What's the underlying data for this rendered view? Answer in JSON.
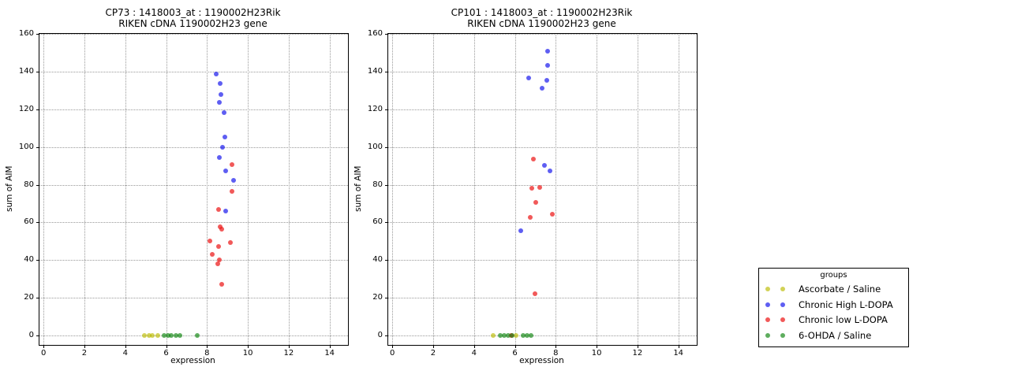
{
  "figure": {
    "background": "#ffffff",
    "grid_color": "#999999",
    "legend": {
      "title": "groups",
      "markers_per_entry": 2
    },
    "groups": [
      {
        "name": "Ascorbate / Saline",
        "color": "rgba(187,187,0,0.66)"
      },
      {
        "name": "Chronic High L-DOPA",
        "color": "rgba(10,10,235,0.66)"
      },
      {
        "name": "Chronic low L-DOPA",
        "color": "rgba(235,25,25,0.72)"
      },
      {
        "name": "6-OHDA / Saline",
        "color": "rgba(10,130,10,0.66)"
      }
    ]
  },
  "chart_data": [
    {
      "type": "scatter",
      "title_line1": "CP73 : 1418003_at : 1190002H23Rik",
      "title_line2": "RIKEN cDNA 1190002H23 gene",
      "xlabel": "expression",
      "ylabel": "sum of AIM",
      "xlim": [
        -0.2,
        14.9
      ],
      "ylim": [
        -5,
        160
      ],
      "xticks": [
        0,
        2,
        4,
        6,
        8,
        10,
        12,
        14
      ],
      "yticks": [
        0,
        20,
        40,
        60,
        80,
        100,
        120,
        140,
        160
      ],
      "grid": true,
      "series": [
        {
          "group": "Ascorbate / Saline",
          "points": [
            [
              4.95,
              0
            ],
            [
              5.16,
              0
            ],
            [
              5.34,
              0
            ],
            [
              5.59,
              0
            ]
          ]
        },
        {
          "group": "Chronic High L-DOPA",
          "points": [
            [
              8.46,
              138.5
            ],
            [
              8.66,
              133.6
            ],
            [
              8.7,
              127.8
            ],
            [
              8.6,
              123.6
            ],
            [
              8.83,
              118.3
            ],
            [
              8.89,
              105.3
            ],
            [
              8.75,
              99.9
            ],
            [
              8.61,
              94.5
            ],
            [
              8.9,
              87.3
            ],
            [
              9.3,
              82.2
            ],
            [
              8.9,
              66.2
            ]
          ]
        },
        {
          "group": "Chronic low L-DOPA",
          "points": [
            [
              9.21,
              90.8
            ],
            [
              9.24,
              76.6
            ],
            [
              8.57,
              66.9
            ],
            [
              8.64,
              57.8
            ],
            [
              8.71,
              56.6
            ],
            [
              8.16,
              50.1
            ],
            [
              9.16,
              49.4
            ],
            [
              8.56,
              47.1
            ],
            [
              8.25,
              43.0
            ],
            [
              8.6,
              40.1
            ],
            [
              8.54,
              38.0
            ],
            [
              8.74,
              27.0
            ]
          ]
        },
        {
          "group": "6-OHDA / Saline",
          "points": [
            [
              5.89,
              0
            ],
            [
              6.08,
              0
            ],
            [
              6.24,
              0
            ],
            [
              6.47,
              0
            ],
            [
              6.66,
              0
            ],
            [
              7.52,
              0
            ]
          ]
        }
      ]
    },
    {
      "type": "scatter",
      "title_line1": "CP101 : 1418003_at : 1190002H23Rik",
      "title_line2": "RIKEN cDNA 1190002H23 gene",
      "xlabel": "expression",
      "ylabel": "sum of AIM",
      "xlim": [
        -0.2,
        14.9
      ],
      "ylim": [
        -5,
        160
      ],
      "xticks": [
        0,
        2,
        4,
        6,
        8,
        10,
        12,
        14
      ],
      "yticks": [
        0,
        20,
        40,
        60,
        80,
        100,
        120,
        140,
        160
      ],
      "grid": true,
      "series": [
        {
          "group": "Ascorbate / Saline",
          "points": [
            [
              4.94,
              0
            ],
            [
              6.05,
              0
            ]
          ]
        },
        {
          "group": "Chronic High L-DOPA",
          "points": [
            [
              7.61,
              150.9
            ],
            [
              7.59,
              143.4
            ],
            [
              6.69,
              136.7
            ],
            [
              7.55,
              135.4
            ],
            [
              7.33,
              131.2
            ],
            [
              7.45,
              90.1
            ],
            [
              7.72,
              87.5
            ],
            [
              6.3,
              55.4
            ]
          ]
        },
        {
          "group": "Chronic low L-DOPA",
          "points": [
            [
              6.91,
              93.7
            ],
            [
              7.2,
              78.7
            ],
            [
              6.82,
              78.3
            ],
            [
              7.01,
              70.7
            ],
            [
              7.83,
              64.4
            ],
            [
              6.75,
              62.5
            ],
            [
              6.97,
              22.3
            ],
            [
              5.84,
              0
            ]
          ]
        },
        {
          "group": "6-OHDA / Saline",
          "points": [
            [
              5.3,
              0
            ],
            [
              5.49,
              0
            ],
            [
              5.68,
              0
            ],
            [
              5.88,
              0
            ],
            [
              6.42,
              0
            ],
            [
              6.59,
              0
            ],
            [
              6.8,
              0
            ]
          ]
        }
      ]
    }
  ]
}
